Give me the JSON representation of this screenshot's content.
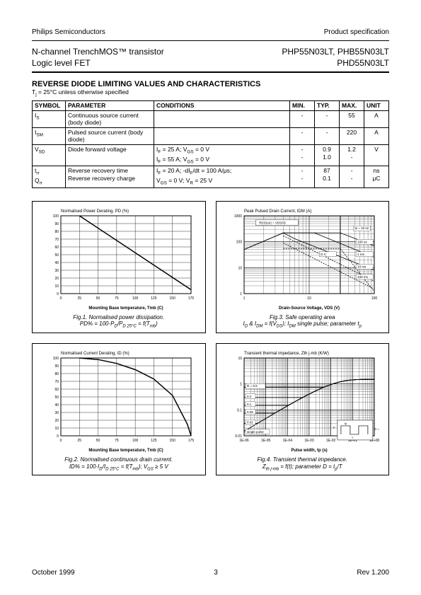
{
  "header": {
    "company": "Philips Semiconductors",
    "doc_type": "Product specification",
    "product_desc_line1": "N-channel TrenchMOS™ transistor",
    "product_desc_line2": "Logic level FET",
    "part_numbers_line1": "PHP55N03LT, PHB55N03LT",
    "part_numbers_line2": "PHD55N03LT"
  },
  "section": {
    "title": "REVERSE DIODE LIMITING VALUES AND CHARACTERISTICS",
    "condition": "Tj = 25°C unless otherwise specified"
  },
  "table": {
    "headers": [
      "SYMBOL",
      "PARAMETER",
      "CONDITIONS",
      "MIN.",
      "TYP.",
      "MAX.",
      "UNIT"
    ],
    "rows": [
      {
        "symbol": "IS",
        "param": "Continuous source current (body diode)",
        "cond": "",
        "min": "-",
        "typ": "-",
        "max": "55",
        "unit": "A"
      },
      {
        "symbol": "ISM",
        "param": "Pulsed source current (body diode)",
        "cond": "",
        "min": "-",
        "typ": "-",
        "max": "220",
        "unit": "A"
      },
      {
        "symbol": "VSD",
        "param": "Diode forward voltage",
        "cond": "IF = 25 A; VGS = 0 V\nIF = 55 A; VGS = 0 V",
        "min": "-\n-",
        "typ": "0.9\n1.0",
        "max": "1.2\n-",
        "unit": "V"
      },
      {
        "symbol": "trr\nQrr",
        "param": "Reverse recovery time\nReverse recovery charge",
        "cond": "IF = 20 A; -dIF/dt = 100 A/μs;\nVGS = 0 V; VR = 25 V",
        "min": "-\n-",
        "typ": "87\n0.1",
        "max": "-\n-",
        "unit": "ns\nμC"
      }
    ]
  },
  "fig1": {
    "title_top": "Normalised Power Derating, PD (%)",
    "xlabel": "Mounting Base temperature, Tmb (C)",
    "caption_line1": "Fig.1.   Normalised power dissipation.",
    "caption_line2": "PD% = 100·PD/PD 25°C = f(Tmb)",
    "xlim": [
      0,
      175
    ],
    "ylim": [
      0,
      100
    ],
    "xticks": [
      0,
      25,
      50,
      75,
      100,
      125,
      150,
      175
    ],
    "yticks": [
      0,
      10,
      20,
      30,
      40,
      50,
      60,
      70,
      80,
      90,
      100
    ],
    "line": [
      [
        25,
        100
      ],
      [
        175,
        5
      ]
    ],
    "line_color": "#000",
    "grid_color": "#000",
    "bg": "#fff",
    "fontsize_label": 6,
    "fontsize_tick": 5
  },
  "fig2": {
    "title_top": "Normalised Current Derating, ID (%)",
    "xlabel": "Mounting Base temperature, Tmb (C)",
    "caption_line1": "Fig.2.   Normalised continuous drain current.",
    "caption_line2": "ID% = 100·ID/ID 25°C = f(Tmb); VGS ≥ 5 V",
    "xlim": [
      0,
      175
    ],
    "ylim": [
      0,
      100
    ],
    "xticks": [
      0,
      25,
      50,
      75,
      100,
      125,
      150,
      175
    ],
    "yticks": [
      0,
      10,
      20,
      30,
      40,
      50,
      60,
      70,
      80,
      90,
      100
    ],
    "line": [
      [
        25,
        100
      ],
      [
        50,
        98
      ],
      [
        75,
        93
      ],
      [
        100,
        85
      ],
      [
        125,
        73
      ],
      [
        150,
        52
      ],
      [
        170,
        15
      ],
      [
        175,
        0
      ]
    ],
    "line_color": "#000",
    "grid_color": "#000",
    "bg": "#fff",
    "fontsize_label": 6,
    "fontsize_tick": 5
  },
  "fig3": {
    "title_top": "Peak Pulsed Drain Current, IDM (A)",
    "xlabel": "Drain-Source Voltage, VDS (V)",
    "caption_line1": "Fig.3.   Safe operating area",
    "caption_line2": "ID & IDM = f(VDS); IDM single pulse; parameter tp",
    "xlim_log": [
      1,
      100
    ],
    "ylim_log": [
      1,
      1000
    ],
    "annotations": [
      "RDS(on) = VDS/ID",
      "tp = 10 us",
      "100 us",
      "1 ms",
      "10 ms",
      "100 ms",
      "D C"
    ],
    "line_color": "#000",
    "grid_color": "#000",
    "bg": "#fff",
    "fontsize_label": 6,
    "fontsize_tick": 5
  },
  "fig4": {
    "title_top": "Transient thermal impedance, Zth j-mb (K/W)",
    "xlabel": "Pulse width, tp (s)",
    "caption_line1": "Fig.4.   Transient thermal impedance.",
    "caption_line2": "Zth j-mb = f(t); parameter D = tp/T",
    "xlim_log": [
      1e-06,
      1
    ],
    "ylim_log": [
      0.01,
      10
    ],
    "duty_labels": [
      "D = 0.5",
      "0.2",
      "0.1",
      "0.05",
      "0.02",
      "single pulse"
    ],
    "inset_labels": [
      "tp",
      "T",
      "D = tp/T",
      "P"
    ],
    "line_color": "#000",
    "grid_color": "#000",
    "bg": "#fff",
    "fontsize_label": 6,
    "fontsize_tick": 5
  },
  "footer": {
    "date": "October 1999",
    "page": "3",
    "rev": "Rev 1.200"
  }
}
